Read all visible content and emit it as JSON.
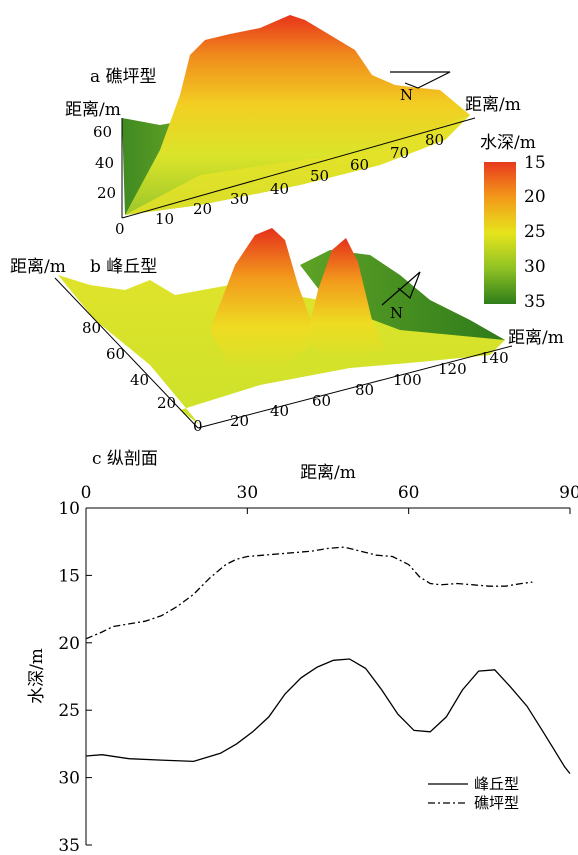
{
  "panel_a": {
    "label": "a 礁坪型",
    "y_axis_label": "距离/m",
    "x_axis_label": "距离/m",
    "y_ticks": [
      "0",
      "20",
      "40",
      "60"
    ],
    "x_ticks": [
      "10",
      "20",
      "30",
      "40",
      "50",
      "60",
      "70",
      "80"
    ],
    "north": "N"
  },
  "panel_b": {
    "label": "b 峰丘型",
    "y_axis_label": "距离/m",
    "x_axis_label": "距离/m",
    "y_ticks": [
      "0",
      "20",
      "40",
      "60",
      "80"
    ],
    "x_ticks": [
      "20",
      "40",
      "60",
      "80",
      "100",
      "120",
      "140"
    ],
    "north": "N"
  },
  "colorbar": {
    "title": "水深/m",
    "ticks": [
      "15",
      "20",
      "25",
      "30",
      "35"
    ],
    "colors": [
      "#e83a1e",
      "#f39a1a",
      "#e6e41c",
      "#8fc224",
      "#2e7d1a"
    ]
  },
  "panel_c": {
    "label": "c 纵剖面"
  },
  "chart_data": {
    "type": "line",
    "title": "c 纵剖面",
    "xlabel": "距离/m",
    "ylabel": "水深/m",
    "xlim": [
      0,
      90
    ],
    "ylim": [
      10,
      35
    ],
    "y_inverted": true,
    "x_ticks": [
      0,
      30,
      60,
      90
    ],
    "y_ticks": [
      10,
      15,
      20,
      25,
      30,
      35
    ],
    "x_axis_position": "top",
    "legend_position": "bottom-right",
    "series": [
      {
        "name": "峰丘型",
        "style": "solid",
        "x": [
          0,
          3,
          8,
          14,
          20,
          25,
          28,
          31,
          34,
          37,
          40,
          43,
          46,
          49,
          52,
          55,
          58,
          61,
          64,
          67,
          70,
          73,
          76,
          79,
          82,
          85,
          87,
          89,
          90
        ],
        "y": [
          28.4,
          28.3,
          28.6,
          28.7,
          28.8,
          28.2,
          27.5,
          26.6,
          25.5,
          23.8,
          22.6,
          21.8,
          21.3,
          21.2,
          21.9,
          23.5,
          25.3,
          26.5,
          26.6,
          25.5,
          23.5,
          22.1,
          22.0,
          23.3,
          24.7,
          26.6,
          27.9,
          29.2,
          29.7
        ]
      },
      {
        "name": "礁坪型",
        "style": "dashdot",
        "x": [
          0,
          3,
          5,
          8,
          11,
          14,
          17,
          20,
          23,
          26,
          28,
          30,
          33,
          36,
          39,
          42,
          45,
          48,
          51,
          54,
          57,
          60,
          62,
          64,
          66,
          69,
          72,
          75,
          78,
          81,
          83
        ],
        "y": [
          19.7,
          19.2,
          18.8,
          18.6,
          18.4,
          18.0,
          17.3,
          16.4,
          15.2,
          14.2,
          13.8,
          13.6,
          13.5,
          13.4,
          13.3,
          13.2,
          13.0,
          12.9,
          13.2,
          13.5,
          13.6,
          14.2,
          15.1,
          15.6,
          15.7,
          15.6,
          15.7,
          15.8,
          15.8,
          15.6,
          15.5
        ]
      }
    ]
  }
}
